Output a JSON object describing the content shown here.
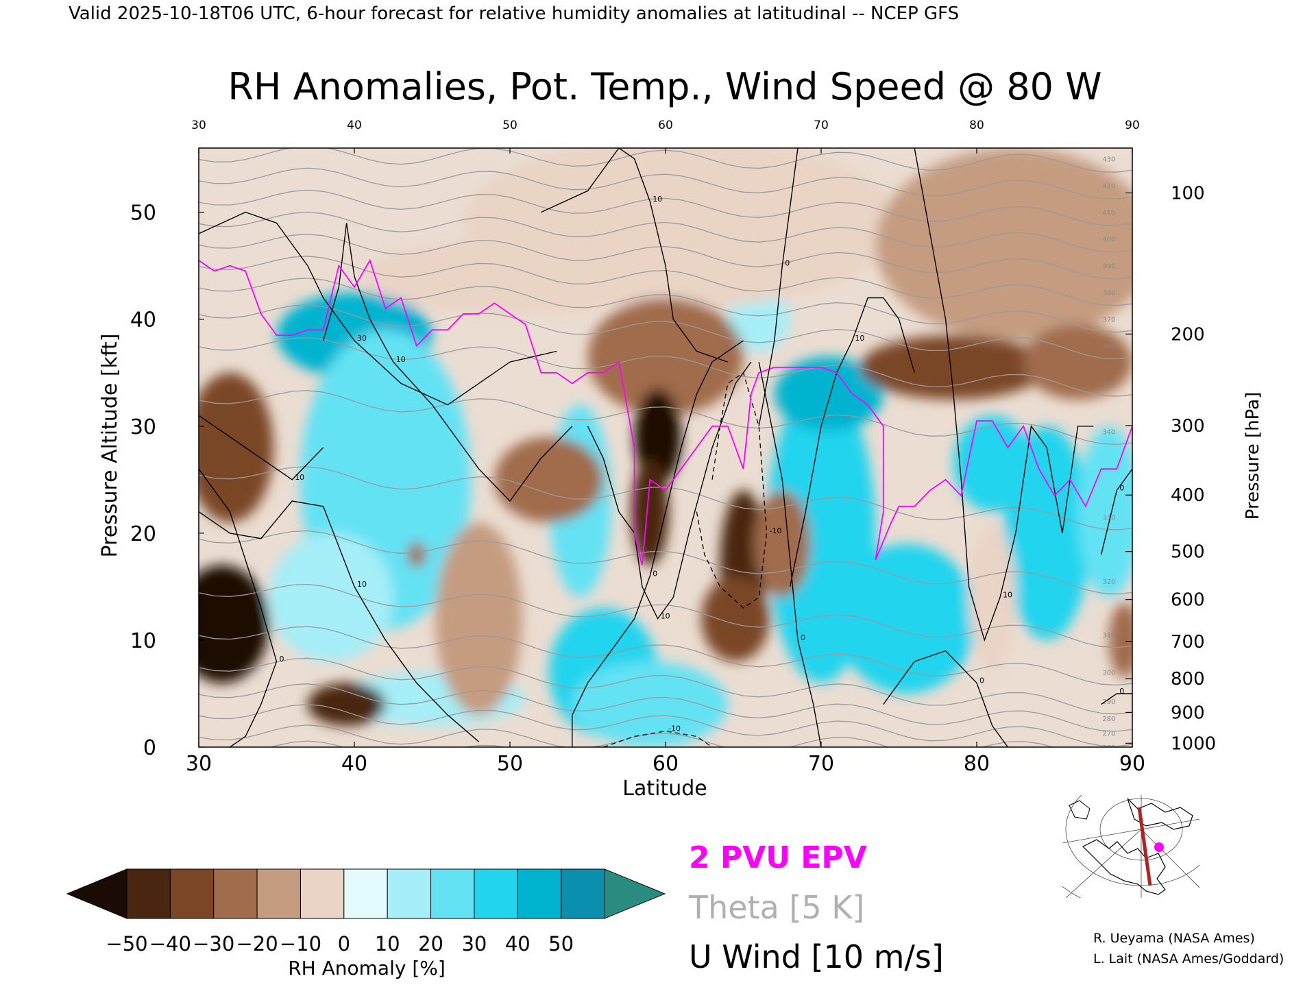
{
  "header": "Valid 2025-10-18T06 UTC, 6-hour forecast for relative humidity anomalies at latitudinal -- NCEP GFS",
  "chart_data": {
    "type": "heatmap",
    "title": "RH Anomalies, Pot. Temp., Wind Speed @ 80 W",
    "xlabel": "Latitude",
    "ylabel": "Pressure Altitude [kft]",
    "y2label": "Pressure [hPa]",
    "xlim": [
      30,
      90
    ],
    "ylim": [
      0,
      56
    ],
    "x_ticks": [
      "30",
      "40",
      "50",
      "60",
      "70",
      "80",
      "90"
    ],
    "y_ticks": [
      "0",
      "10",
      "20",
      "30",
      "40",
      "50"
    ],
    "pressure_ticks": [
      "100",
      "200",
      "300",
      "400",
      "500",
      "600",
      "700",
      "800",
      "900",
      "1000"
    ],
    "colorbar": {
      "label": "RH Anomaly [%]",
      "ticks": [
        "−50",
        "−40",
        "−30",
        "−20",
        "−10",
        "0",
        "10",
        "20",
        "30",
        "40",
        "50"
      ],
      "colors": [
        "#1a0c04",
        "#4a2510",
        "#7a4626",
        "#a06c4c",
        "#c59c80",
        "#ead4c6",
        "#e4fbfd",
        "#a6eef8",
        "#63e2f4",
        "#22d4ee",
        "#00b4d0",
        "#0a8fae",
        "#2a8c80"
      ]
    },
    "rh_field": [
      {
        "lat": 39.5,
        "alt": 37.5,
        "rx": 2.5,
        "ry": 2.3,
        "value": 55
      },
      {
        "lat": 40.0,
        "alt": 38.5,
        "rx": 5.0,
        "ry": 4.0,
        "value": 42
      },
      {
        "lat": 42.0,
        "alt": 25.0,
        "rx": 5.5,
        "ry": 14.0,
        "value": 28
      },
      {
        "lat": 38.5,
        "alt": 14.0,
        "rx": 4.0,
        "ry": 6.0,
        "value": 18
      },
      {
        "lat": 45.0,
        "alt": 4.5,
        "rx": 6.0,
        "ry": 2.5,
        "value": 12
      },
      {
        "lat": 54.5,
        "alt": 23.0,
        "rx": 2.0,
        "ry": 9.0,
        "value": 22
      },
      {
        "lat": 56.0,
        "alt": 7.0,
        "rx": 3.5,
        "ry": 6.0,
        "value": 30
      },
      {
        "lat": 59.0,
        "alt": 4.0,
        "rx": 5.0,
        "ry": 4.0,
        "value": 25
      },
      {
        "lat": 70.0,
        "alt": 20.0,
        "rx": 3.5,
        "ry": 14.0,
        "value": 35
      },
      {
        "lat": 70.5,
        "alt": 33.0,
        "rx": 3.5,
        "ry": 3.5,
        "value": 40
      },
      {
        "lat": 75.5,
        "alt": 12.0,
        "rx": 4.5,
        "ry": 7.0,
        "value": 32
      },
      {
        "lat": 81.0,
        "alt": 26.5,
        "rx": 2.5,
        "ry": 4.5,
        "value": 33
      },
      {
        "lat": 84.5,
        "alt": 20.0,
        "rx": 2.8,
        "ry": 10.0,
        "value": 30
      },
      {
        "lat": 88.5,
        "alt": 22.0,
        "rx": 2.0,
        "ry": 8.0,
        "value": 25
      },
      {
        "lat": 66.0,
        "alt": 40.0,
        "rx": 2.0,
        "ry": 3.0,
        "value": 14
      },
      {
        "lat": 50.5,
        "alt": 44.0,
        "rx": 10.0,
        "ry": 3.5,
        "value": -8
      },
      {
        "lat": 61.0,
        "alt": 49.0,
        "rx": 14.0,
        "ry": 8.0,
        "value": -10
      },
      {
        "lat": 82.5,
        "alt": 47.0,
        "rx": 9.0,
        "ry": 9.0,
        "value": -12
      },
      {
        "lat": 60.0,
        "alt": 36.5,
        "rx": 5.0,
        "ry": 5.5,
        "value": -30
      },
      {
        "lat": 78.5,
        "alt": 35.5,
        "rx": 6.0,
        "ry": 3.0,
        "value": -35
      },
      {
        "lat": 86.5,
        "alt": 36.0,
        "rx": 3.5,
        "ry": 3.5,
        "value": -30
      },
      {
        "lat": 59.5,
        "alt": 29.0,
        "rx": 1.5,
        "ry": 4.5,
        "value": -60
      },
      {
        "lat": 59.0,
        "alt": 22.0,
        "rx": 1.2,
        "ry": 5.0,
        "value": -45
      },
      {
        "lat": 65.0,
        "alt": 17.0,
        "rx": 1.5,
        "ry": 7.0,
        "value": -50
      },
      {
        "lat": 64.5,
        "alt": 12.0,
        "rx": 2.2,
        "ry": 4.0,
        "value": -40
      },
      {
        "lat": 67.5,
        "alt": 19.0,
        "rx": 1.8,
        "ry": 5.0,
        "value": -30
      },
      {
        "lat": 32.0,
        "alt": 28.0,
        "rx": 2.8,
        "ry": 7.0,
        "value": -38
      },
      {
        "lat": 31.5,
        "alt": 11.5,
        "rx": 3.0,
        "ry": 5.5,
        "value": -52
      },
      {
        "lat": 39.5,
        "alt": 4.0,
        "rx": 2.5,
        "ry": 2.0,
        "value": -50
      },
      {
        "lat": 52.5,
        "alt": 25.0,
        "rx": 3.5,
        "ry": 4.0,
        "value": -30
      },
      {
        "lat": 48.0,
        "alt": 12.0,
        "rx": 2.8,
        "ry": 9.0,
        "value": -20
      },
      {
        "lat": 44.0,
        "alt": 18.0,
        "rx": 0.6,
        "ry": 1.2,
        "value": -30
      },
      {
        "lat": 81.0,
        "alt": 14.0,
        "rx": 1.5,
        "ry": 7.0,
        "value": -10
      },
      {
        "lat": 89.5,
        "alt": 10.0,
        "rx": 1.0,
        "ry": 3.5,
        "value": -30
      }
    ],
    "theta_levels": [
      {
        "value": "250",
        "alt_at_30": 0.0,
        "alt_at_90": -2.0
      },
      {
        "value": "260",
        "alt_at_30": 1.5,
        "alt_at_90": -0.5
      },
      {
        "value": "270",
        "alt_at_30": 3.5,
        "alt_at_90": 0.8
      },
      {
        "value": "280",
        "alt_at_30": 5.5,
        "alt_at_90": 2.2
      },
      {
        "value": "290",
        "alt_at_30": 8.0,
        "alt_at_90": 3.8
      },
      {
        "value": "300",
        "alt_at_30": 11.0,
        "alt_at_90": 6.5
      },
      {
        "value": "310",
        "alt_at_30": 15.0,
        "alt_at_90": 10.0
      },
      {
        "value": "320",
        "alt_at_30": 20.0,
        "alt_at_90": 15.0
      },
      {
        "value": "330",
        "alt_at_30": 26.0,
        "alt_at_90": 21.0
      },
      {
        "value": "340",
        "alt_at_30": 33.0,
        "alt_at_90": 29.0
      },
      {
        "value": "350",
        "alt_at_30": 38.0,
        "alt_at_90": 33.5
      },
      {
        "value": "360",
        "alt_at_30": 41.0,
        "alt_at_90": 37.0
      },
      {
        "value": "370",
        "alt_at_30": 43.5,
        "alt_at_90": 39.5
      },
      {
        "value": "380",
        "alt_at_30": 45.5,
        "alt_at_90": 42.0
      },
      {
        "value": "390",
        "alt_at_30": 47.5,
        "alt_at_90": 44.5
      },
      {
        "value": "400",
        "alt_at_30": 49.5,
        "alt_at_90": 47.0
      },
      {
        "value": "410",
        "alt_at_30": 51.5,
        "alt_at_90": 49.5
      },
      {
        "value": "420",
        "alt_at_30": 53.5,
        "alt_at_90": 52.0
      },
      {
        "value": "430",
        "alt_at_30": 55.5,
        "alt_at_90": 54.5
      }
    ],
    "epv_2pvu": [
      [
        30,
        45.5
      ],
      [
        31,
        44.5
      ],
      [
        32,
        45
      ],
      [
        33,
        44.5
      ],
      [
        34,
        40.5
      ],
      [
        35,
        38.5
      ],
      [
        36,
        38.5
      ],
      [
        37,
        39
      ],
      [
        38,
        39
      ],
      [
        39,
        45
      ],
      [
        40,
        43
      ],
      [
        41,
        45.5
      ],
      [
        42,
        41
      ],
      [
        43,
        42
      ],
      [
        44,
        37.5
      ],
      [
        45,
        39
      ],
      [
        46,
        39
      ],
      [
        47,
        40.5
      ],
      [
        48,
        40.5
      ],
      [
        49,
        41.5
      ],
      [
        50,
        40.5
      ],
      [
        51,
        39.5
      ],
      [
        52,
        35
      ],
      [
        53,
        35
      ],
      [
        54,
        34
      ],
      [
        55,
        35
      ],
      [
        56,
        35
      ],
      [
        57,
        36
      ],
      [
        58,
        28
      ],
      [
        58,
        20
      ],
      [
        58.5,
        17
      ],
      [
        59,
        25
      ],
      [
        60,
        24
      ],
      [
        61,
        26
      ],
      [
        62,
        28
      ],
      [
        63,
        30
      ],
      [
        64,
        30
      ],
      [
        65,
        26
      ],
      [
        65.5,
        33
      ],
      [
        66,
        35
      ],
      [
        67,
        35.5
      ],
      [
        69,
        35.5
      ],
      [
        70,
        35.5
      ],
      [
        71,
        35
      ],
      [
        72,
        33
      ],
      [
        73,
        32
      ],
      [
        74,
        30
      ],
      [
        74,
        22
      ],
      [
        73.5,
        17.5
      ],
      [
        74.5,
        21
      ],
      [
        75,
        22.5
      ],
      [
        76,
        22.5
      ],
      [
        77,
        24
      ],
      [
        78,
        25
      ],
      [
        79,
        23.5
      ],
      [
        80,
        30.5
      ],
      [
        81,
        30.5
      ],
      [
        82,
        28
      ],
      [
        83,
        30
      ],
      [
        84,
        26
      ],
      [
        85,
        23.5
      ],
      [
        86,
        25
      ],
      [
        87,
        22.5
      ],
      [
        88,
        26
      ],
      [
        89,
        26
      ],
      [
        90,
        30
      ]
    ],
    "u_wind_contours": [
      {
        "label": "10",
        "points": [
          [
            30,
            22
          ],
          [
            32,
            20
          ],
          [
            34,
            19.5
          ],
          [
            36,
            23
          ],
          [
            38,
            22.5
          ],
          [
            40,
            15
          ],
          [
            42,
            10
          ],
          [
            44,
            6
          ],
          [
            46,
            3
          ],
          [
            48,
            0.5
          ]
        ]
      },
      {
        "label": "0",
        "points": [
          [
            30,
            26
          ],
          [
            32,
            22
          ],
          [
            34,
            13
          ],
          [
            35,
            8
          ],
          [
            34,
            4
          ],
          [
            33,
            1
          ],
          [
            32,
            0
          ]
        ]
      },
      {
        "label": "10",
        "points": [
          [
            38,
            38
          ],
          [
            39,
            43
          ],
          [
            39.5,
            49
          ],
          [
            40,
            44
          ],
          [
            41,
            40
          ],
          [
            42.5,
            36
          ],
          [
            45,
            32
          ],
          [
            48,
            26
          ],
          [
            50,
            23
          ],
          [
            52,
            27
          ],
          [
            54,
            30
          ]
        ]
      },
      {
        "label": "30",
        "points": [
          [
            30,
            48
          ],
          [
            33,
            50
          ],
          [
            35,
            49
          ],
          [
            37,
            45
          ],
          [
            38,
            42
          ],
          [
            40,
            38
          ],
          [
            43,
            34
          ],
          [
            46,
            32
          ],
          [
            48,
            34
          ],
          [
            50,
            36
          ],
          [
            53,
            37
          ]
        ]
      },
      {
        "label": "10",
        "points": [
          [
            30,
            31
          ],
          [
            33,
            28
          ],
          [
            36,
            25
          ],
          [
            38,
            28
          ]
        ]
      },
      {
        "label": "10",
        "points": [
          [
            52,
            50
          ],
          [
            55,
            52
          ],
          [
            57,
            56
          ],
          [
            58,
            55
          ],
          [
            59,
            51
          ],
          [
            60,
            45
          ],
          [
            60.5,
            40
          ],
          [
            62,
            37
          ],
          [
            64,
            36
          ]
        ]
      },
      {
        "label": "10",
        "points": [
          [
            55,
            30
          ],
          [
            56,
            27
          ],
          [
            57,
            22
          ],
          [
            58,
            20
          ],
          [
            58.5,
            15
          ],
          [
            59.5,
            12
          ],
          [
            60.5,
            14
          ],
          [
            61.5,
            20
          ],
          [
            63,
            28
          ],
          [
            64.5,
            34
          ],
          [
            65.5,
            36
          ]
        ]
      },
      {
        "label": "0",
        "points": [
          [
            54,
            0
          ],
          [
            54,
            3
          ],
          [
            55,
            6
          ],
          [
            56,
            8
          ],
          [
            57,
            10
          ],
          [
            58,
            12
          ],
          [
            59,
            16
          ],
          [
            60,
            22
          ],
          [
            61,
            28
          ],
          [
            62,
            33
          ],
          [
            63,
            36
          ],
          [
            65,
            38
          ]
        ]
      },
      {
        "label": "0",
        "points": [
          [
            66,
            30
          ],
          [
            67,
            38
          ],
          [
            67.5,
            45
          ],
          [
            68.5,
            56
          ]
        ]
      },
      {
        "label": "10",
        "points": [
          [
            68,
            15
          ],
          [
            69,
            22
          ],
          [
            70,
            30
          ],
          [
            71,
            35
          ],
          [
            72,
            38
          ],
          [
            73,
            42
          ],
          [
            74,
            42
          ],
          [
            75,
            40
          ],
          [
            76,
            35
          ]
        ]
      },
      {
        "label": "0",
        "points": [
          [
            66,
            36
          ],
          [
            67.5,
            25
          ],
          [
            68.5,
            10
          ],
          [
            69.5,
            4
          ],
          [
            70,
            0
          ]
        ]
      },
      {
        "label": "10",
        "points": [
          [
            76,
            56
          ],
          [
            77,
            48
          ],
          [
            78,
            40
          ],
          [
            78.5,
            33
          ],
          [
            79,
            25
          ],
          [
            79.5,
            15
          ],
          [
            80.5,
            10
          ],
          [
            81.5,
            14
          ],
          [
            82.5,
            20
          ],
          [
            83.5,
            30
          ],
          [
            84.5,
            28
          ],
          [
            85.5,
            20
          ],
          [
            86.5,
            30
          ],
          [
            87.5,
            30
          ]
        ]
      },
      {
        "label": "0",
        "points": [
          [
            74,
            4
          ],
          [
            76,
            8
          ],
          [
            78,
            9
          ],
          [
            80,
            6
          ],
          [
            81,
            2
          ],
          [
            82,
            0
          ]
        ]
      },
      {
        "label": "0",
        "points": [
          [
            88,
            18
          ],
          [
            89,
            24
          ],
          [
            90,
            26
          ]
        ]
      },
      {
        "label": "0",
        "points": [
          [
            88,
            4
          ],
          [
            89,
            5
          ],
          [
            90,
            5
          ]
        ]
      }
    ],
    "u_wind_dashed": [
      {
        "label": "-10",
        "points": [
          [
            62,
            22
          ],
          [
            62.5,
            18
          ],
          [
            63.5,
            15
          ],
          [
            65,
            13
          ],
          [
            66,
            14
          ],
          [
            66.5,
            20
          ],
          [
            66,
            30
          ],
          [
            65,
            35
          ],
          [
            64,
            34
          ],
          [
            63.5,
            30
          ],
          [
            63,
            25
          ]
        ]
      },
      {
        "label": "-10",
        "points": [
          [
            56,
            0
          ],
          [
            58,
            1
          ],
          [
            60,
            1.5
          ],
          [
            62,
            1
          ],
          [
            63,
            0
          ]
        ]
      }
    ],
    "legend": {
      "epv": "2 PVU EPV",
      "theta": "Theta [5 K]",
      "uwind": "U Wind [10 m/s]"
    }
  },
  "map_inset": {
    "section_longitude": "80 W"
  },
  "credits": [
    "R. Ueyama (NASA Ames)",
    "L. Lait (NASA Ames/Goddard)"
  ]
}
